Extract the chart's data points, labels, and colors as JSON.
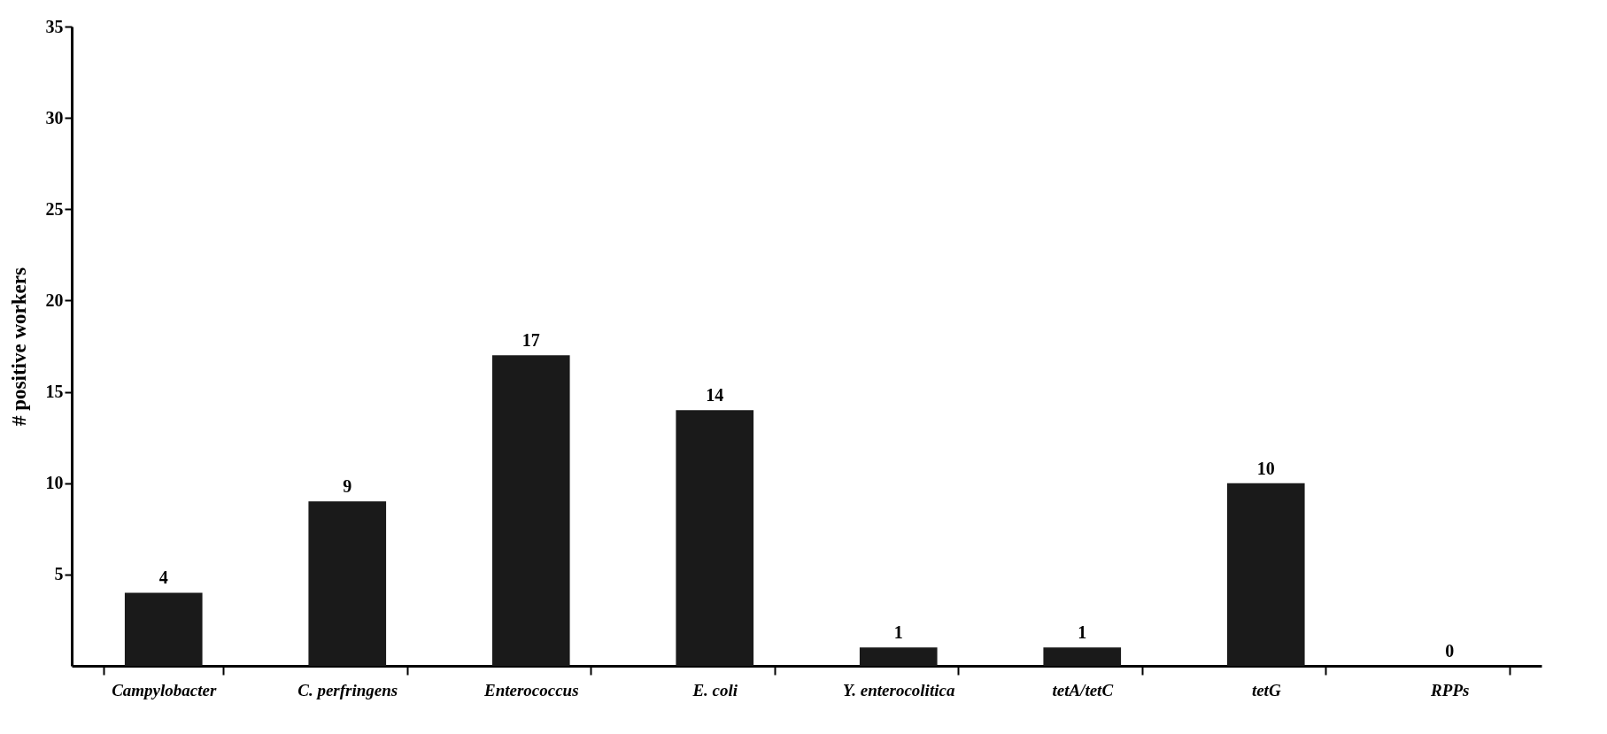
{
  "chart_data": {
    "type": "bar",
    "ylabel": "# positive workers",
    "categories": [
      "Campylobacter",
      "C. perfringens",
      "Enterococcus",
      "E. coli",
      "Y. enterocolitica",
      "tetA/tetC",
      "tetG",
      "RPPs"
    ],
    "values": [
      4,
      9,
      17,
      14,
      1,
      1,
      10,
      0
    ],
    "color": "#1a1a1a",
    "ylim": [
      0,
      35
    ],
    "yticks": [
      5,
      10,
      15,
      20,
      25,
      30,
      35
    ],
    "grid": false,
    "data_labels": true
  }
}
